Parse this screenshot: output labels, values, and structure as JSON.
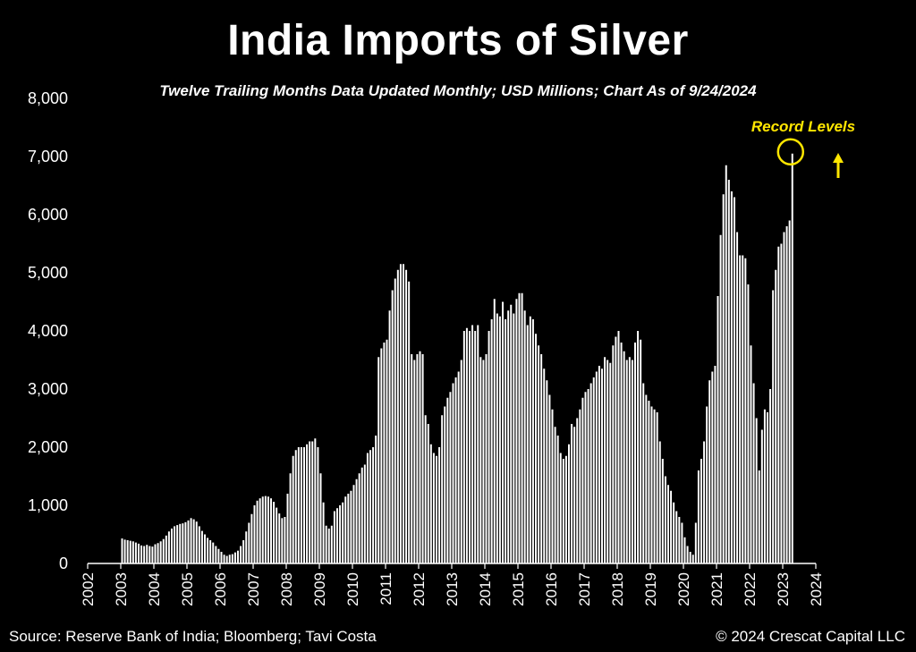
{
  "chart_data": {
    "type": "bar",
    "title": "India Imports of Silver",
    "subtitle": "Twelve Trailing Months Data Updated Monthly; USD Millions; Chart As of 9/24/2024",
    "ylim": [
      0,
      8000
    ],
    "yticks": [
      "0",
      "1,000",
      "2,000",
      "3,000",
      "4,000",
      "5,000",
      "6,000",
      "7,000",
      "8,000"
    ],
    "xticks": [
      "2002",
      "2003",
      "2004",
      "2005",
      "2006",
      "2007",
      "2008",
      "2009",
      "2010",
      "2011",
      "2012",
      "2013",
      "2014",
      "2015",
      "2016",
      "2017",
      "2018",
      "2019",
      "2020",
      "2021",
      "2022",
      "2023",
      "2024"
    ],
    "start": "2003-01",
    "values": [
      430,
      410,
      400,
      390,
      380,
      360,
      340,
      310,
      300,
      320,
      300,
      290,
      330,
      350,
      380,
      420,
      480,
      550,
      600,
      640,
      660,
      680,
      690,
      710,
      740,
      780,
      760,
      720,
      640,
      560,
      500,
      440,
      400,
      360,
      300,
      250,
      200,
      150,
      130,
      150,
      160,
      190,
      220,
      300,
      400,
      550,
      700,
      850,
      1000,
      1080,
      1120,
      1150,
      1160,
      1150,
      1120,
      1060,
      960,
      860,
      780,
      800,
      1200,
      1550,
      1850,
      1950,
      2000,
      2000,
      2000,
      2050,
      2100,
      2100,
      2150,
      2000,
      1550,
      1050,
      650,
      600,
      650,
      900,
      950,
      1000,
      1050,
      1150,
      1200,
      1250,
      1350,
      1450,
      1550,
      1650,
      1700,
      1900,
      1950,
      2000,
      2200,
      3550,
      3700,
      3800,
      3850,
      4350,
      4700,
      4900,
      5050,
      5150,
      5150,
      5050,
      4850,
      3600,
      3500,
      3600,
      3650,
      3600,
      2550,
      2400,
      2050,
      1900,
      1850,
      2000,
      2550,
      2700,
      2850,
      2950,
      3100,
      3200,
      3300,
      3500,
      4000,
      4050,
      4000,
      4100,
      4000,
      4100,
      3550,
      3500,
      3600,
      4000,
      4200,
      4550,
      4300,
      4250,
      4500,
      4200,
      4350,
      4450,
      4300,
      4550,
      4650,
      4650,
      4350,
      4100,
      4250,
      4200,
      3950,
      3750,
      3600,
      3350,
      3150,
      2900,
      2650,
      2350,
      2200,
      1900,
      1800,
      1850,
      2050,
      2400,
      2350,
      2500,
      2650,
      2850,
      2950,
      3000,
      3100,
      3200,
      3300,
      3400,
      3350,
      3550,
      3500,
      3450,
      3750,
      3900,
      4000,
      3800,
      3650,
      3500,
      3550,
      3500,
      3800,
      4000,
      3850,
      3100,
      2900,
      2800,
      2700,
      2650,
      2600,
      2100,
      1800,
      1500,
      1350,
      1250,
      1050,
      900,
      800,
      700,
      450,
      300,
      200,
      150,
      700,
      1600,
      1800,
      2100,
      2700,
      3150,
      3300,
      3400,
      4600,
      5650,
      6350,
      6850,
      6600,
      6400,
      6300,
      5700,
      5300,
      5300,
      5250,
      4800,
      3750,
      3100,
      2500,
      1600,
      2300,
      2650,
      2600,
      3000,
      4700,
      5050,
      5450,
      5500,
      5700,
      5800,
      5900,
      7050
    ],
    "annotation": "Record Levels",
    "colors": {
      "background": "#000000",
      "bar": "#ffffff",
      "text": "#ffffff",
      "annotation": "#ffe600"
    }
  },
  "footer": {
    "source": "Source: Reserve Bank of India; Bloomberg; Tavi Costa",
    "copyright": "© 2024 Crescat Capital LLC"
  }
}
